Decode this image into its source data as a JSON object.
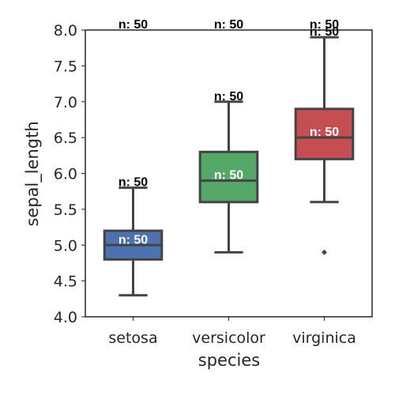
{
  "chart_data": {
    "type": "box",
    "xlabel": "species",
    "ylabel": "sepal_length",
    "ylim": [
      4.0,
      8.0
    ],
    "yticks": [
      "4.0",
      "4.5",
      "5.0",
      "5.5",
      "6.0",
      "6.5",
      "7.0",
      "7.5",
      "8.0"
    ],
    "grid": false,
    "categories": [
      "setosa",
      "versicolor",
      "virginica"
    ],
    "colors": [
      "#4c72b0",
      "#55a868",
      "#c44e52"
    ],
    "boxes": [
      {
        "category": "setosa",
        "whisker_low": 4.3,
        "q1": 4.8,
        "median": 5.0,
        "q3": 5.2,
        "whisker_high": 5.8,
        "outliers": []
      },
      {
        "category": "versicolor",
        "whisker_low": 4.9,
        "q1": 5.6,
        "median": 5.9,
        "q3": 6.3,
        "whisker_high": 7.0,
        "outliers": []
      },
      {
        "category": "virginica",
        "whisker_low": 5.6,
        "q1": 6.2,
        "median": 6.5,
        "q3": 6.9,
        "whisker_high": 7.9,
        "outliers": [
          4.9
        ]
      }
    ],
    "annotations": [
      {
        "text": "n: 50",
        "category": "setosa",
        "y": 5.0,
        "color": "#ffffff"
      },
      {
        "text": "n: 50",
        "category": "setosa",
        "y": 5.8,
        "color": "#000000"
      },
      {
        "text": "n: 50",
        "category": "setosa",
        "y": 8.0,
        "color": "#000000"
      },
      {
        "text": "n: 50",
        "category": "versicolor",
        "y": 5.9,
        "color": "#ffffff"
      },
      {
        "text": "n: 50",
        "category": "versicolor",
        "y": 7.0,
        "color": "#000000"
      },
      {
        "text": "n: 50",
        "category": "versicolor",
        "y": 8.0,
        "color": "#000000"
      },
      {
        "text": "n: 50",
        "category": "virginica",
        "y": 6.5,
        "color": "#ffffff"
      },
      {
        "text": "n: 50",
        "category": "virginica",
        "y": 7.9,
        "color": "#000000"
      },
      {
        "text": "n: 50",
        "category": "virginica",
        "y": 8.0,
        "color": "#000000"
      }
    ]
  }
}
